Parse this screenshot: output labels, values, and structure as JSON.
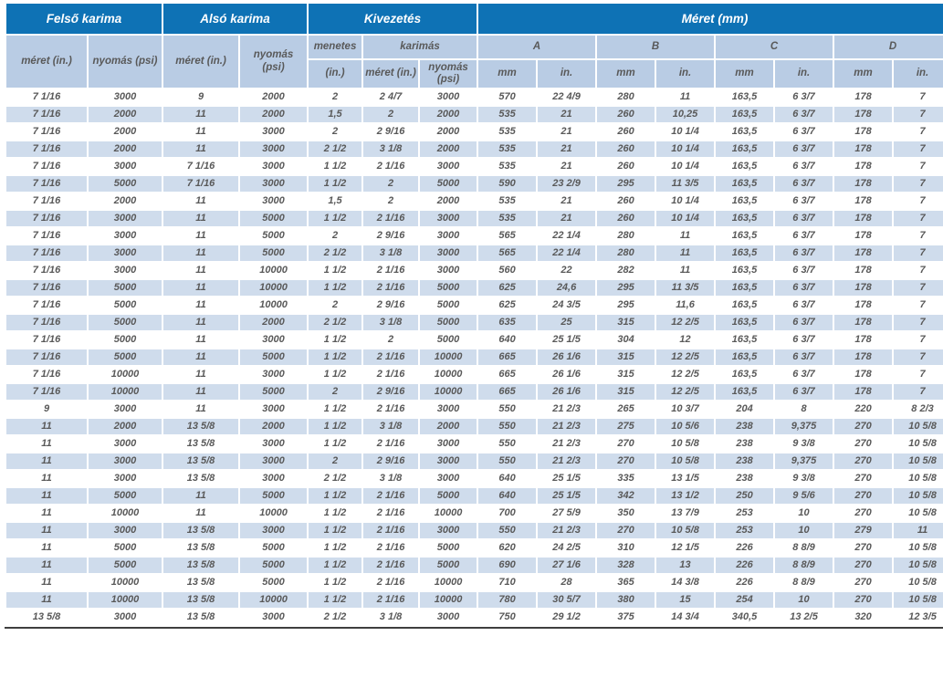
{
  "table": {
    "colors": {
      "header_blue": "#0e72b5",
      "subheader_blue": "#b9cce4",
      "row_stripe": "#cfdcec",
      "text": "#595959",
      "header_text": "#ffffff",
      "bottom_line": "#3f3f3f"
    },
    "groups": [
      {
        "label": "Felső karima"
      },
      {
        "label": "Alsó karima"
      },
      {
        "label": "Kivezetés"
      },
      {
        "label": "Méret (mm)"
      }
    ],
    "subheaders": {
      "felso_meret": "méret (in.)",
      "felso_nyomas": "nyomás (psi)",
      "also_meret": "méret (in.)",
      "also_nyomas": "nyomás (psi)",
      "menetes": "menetes",
      "menetes_unit": "(in.)",
      "karimas": "karimás",
      "karimas_meret": "méret (in.)",
      "karimas_nyomas": "nyomás (psi)",
      "dim_a": "A",
      "dim_b": "B",
      "dim_c": "C",
      "dim_d": "D",
      "mm": "mm",
      "in": "in."
    },
    "rows": [
      [
        "7 1/16",
        "3000",
        "9",
        "2000",
        "2",
        "2 4/7",
        "3000",
        "570",
        "22 4/9",
        "280",
        "11",
        "163,5",
        "6 3/7",
        "178",
        "7"
      ],
      [
        "7 1/16",
        "2000",
        "11",
        "2000",
        "1,5",
        "2",
        "2000",
        "535",
        "21",
        "260",
        "10,25",
        "163,5",
        "6 3/7",
        "178",
        "7"
      ],
      [
        "7 1/16",
        "2000",
        "11",
        "3000",
        "2",
        "2 9/16",
        "2000",
        "535",
        "21",
        "260",
        "10 1/4",
        "163,5",
        "6 3/7",
        "178",
        "7"
      ],
      [
        "7 1/16",
        "2000",
        "11",
        "3000",
        "2 1/2",
        "3 1/8",
        "2000",
        "535",
        "21",
        "260",
        "10 1/4",
        "163,5",
        "6 3/7",
        "178",
        "7"
      ],
      [
        "7 1/16",
        "3000",
        "7 1/16",
        "3000",
        "1 1/2",
        "2 1/16",
        "3000",
        "535",
        "21",
        "260",
        "10 1/4",
        "163,5",
        "6 3/7",
        "178",
        "7"
      ],
      [
        "7 1/16",
        "5000",
        "7 1/16",
        "3000",
        "1 1/2",
        "2",
        "5000",
        "590",
        "23 2/9",
        "295",
        "11 3/5",
        "163,5",
        "6 3/7",
        "178",
        "7"
      ],
      [
        "7 1/16",
        "2000",
        "11",
        "3000",
        "1,5",
        "2",
        "2000",
        "535",
        "21",
        "260",
        "10 1/4",
        "163,5",
        "6 3/7",
        "178",
        "7"
      ],
      [
        "7 1/16",
        "3000",
        "11",
        "5000",
        "1 1/2",
        "2 1/16",
        "3000",
        "535",
        "21",
        "260",
        "10 1/4",
        "163,5",
        "6 3/7",
        "178",
        "7"
      ],
      [
        "7 1/16",
        "3000",
        "11",
        "5000",
        "2",
        "2 9/16",
        "3000",
        "565",
        "22 1/4",
        "280",
        "11",
        "163,5",
        "6 3/7",
        "178",
        "7"
      ],
      [
        "7 1/16",
        "3000",
        "11",
        "5000",
        "2 1/2",
        "3 1/8",
        "3000",
        "565",
        "22 1/4",
        "280",
        "11",
        "163,5",
        "6 3/7",
        "178",
        "7"
      ],
      [
        "7 1/16",
        "3000",
        "11",
        "10000",
        "1 1/2",
        "2 1/16",
        "3000",
        "560",
        "22",
        "282",
        "11",
        "163,5",
        "6 3/7",
        "178",
        "7"
      ],
      [
        "7 1/16",
        "5000",
        "11",
        "10000",
        "1 1/2",
        "2 1/16",
        "5000",
        "625",
        "24,6",
        "295",
        "11 3/5",
        "163,5",
        "6 3/7",
        "178",
        "7"
      ],
      [
        "7 1/16",
        "5000",
        "11",
        "10000",
        "2",
        "2 9/16",
        "5000",
        "625",
        "24 3/5",
        "295",
        "11,6",
        "163,5",
        "6 3/7",
        "178",
        "7"
      ],
      [
        "7 1/16",
        "5000",
        "11",
        "2000",
        "2 1/2",
        "3 1/8",
        "5000",
        "635",
        "25",
        "315",
        "12 2/5",
        "163,5",
        "6 3/7",
        "178",
        "7"
      ],
      [
        "7 1/16",
        "5000",
        "11",
        "3000",
        "1 1/2",
        "2",
        "5000",
        "640",
        "25 1/5",
        "304",
        "12",
        "163,5",
        "6 3/7",
        "178",
        "7"
      ],
      [
        "7 1/16",
        "5000",
        "11",
        "5000",
        "1 1/2",
        "2 1/16",
        "10000",
        "665",
        "26 1/6",
        "315",
        "12 2/5",
        "163,5",
        "6 3/7",
        "178",
        "7"
      ],
      [
        "7 1/16",
        "10000",
        "11",
        "3000",
        "1 1/2",
        "2 1/16",
        "10000",
        "665",
        "26 1/6",
        "315",
        "12 2/5",
        "163,5",
        "6 3/7",
        "178",
        "7"
      ],
      [
        "7 1/16",
        "10000",
        "11",
        "5000",
        "2",
        "2 9/16",
        "10000",
        "665",
        "26 1/6",
        "315",
        "12 2/5",
        "163,5",
        "6 3/7",
        "178",
        "7"
      ],
      [
        "9",
        "3000",
        "11",
        "3000",
        "1 1/2",
        "2 1/16",
        "3000",
        "550",
        "21 2/3",
        "265",
        "10 3/7",
        "204",
        "8",
        "220",
        "8 2/3"
      ],
      [
        "11",
        "2000",
        "13 5/8",
        "2000",
        "1 1/2",
        "3 1/8",
        "2000",
        "550",
        "21 2/3",
        "275",
        "10 5/6",
        "238",
        "9,375",
        "270",
        "10 5/8"
      ],
      [
        "11",
        "3000",
        "13 5/8",
        "3000",
        "1 1/2",
        "2 1/16",
        "3000",
        "550",
        "21 2/3",
        "270",
        "10 5/8",
        "238",
        "9 3/8",
        "270",
        "10 5/8"
      ],
      [
        "11",
        "3000",
        "13 5/8",
        "3000",
        "2",
        "2 9/16",
        "3000",
        "550",
        "21 2/3",
        "270",
        "10 5/8",
        "238",
        "9,375",
        "270",
        "10 5/8"
      ],
      [
        "11",
        "3000",
        "13 5/8",
        "3000",
        "2 1/2",
        "3 1/8",
        "3000",
        "640",
        "25 1/5",
        "335",
        "13 1/5",
        "238",
        "9 3/8",
        "270",
        "10 5/8"
      ],
      [
        "11",
        "5000",
        "11",
        "5000",
        "1 1/2",
        "2 1/16",
        "5000",
        "640",
        "25 1/5",
        "342",
        "13 1/2",
        "250",
        "9 5/6",
        "270",
        "10 5/8"
      ],
      [
        "11",
        "10000",
        "11",
        "10000",
        "1 1/2",
        "2 1/16",
        "10000",
        "700",
        "27 5/9",
        "350",
        "13 7/9",
        "253",
        "10",
        "270",
        "10 5/8"
      ],
      [
        "11",
        "3000",
        "13 5/8",
        "3000",
        "1 1/2",
        "2 1/16",
        "3000",
        "550",
        "21 2/3",
        "270",
        "10 5/8",
        "253",
        "10",
        "279",
        "11"
      ],
      [
        "11",
        "5000",
        "13 5/8",
        "5000",
        "1 1/2",
        "2 1/16",
        "5000",
        "620",
        "24 2/5",
        "310",
        "12 1/5",
        "226",
        "8 8/9",
        "270",
        "10 5/8"
      ],
      [
        "11",
        "5000",
        "13 5/8",
        "5000",
        "1 1/2",
        "2 1/16",
        "5000",
        "690",
        "27 1/6",
        "328",
        "13",
        "226",
        "8 8/9",
        "270",
        "10 5/8"
      ],
      [
        "11",
        "10000",
        "13 5/8",
        "5000",
        "1 1/2",
        "2 1/16",
        "10000",
        "710",
        "28",
        "365",
        "14 3/8",
        "226",
        "8 8/9",
        "270",
        "10 5/8"
      ],
      [
        "11",
        "10000",
        "13 5/8",
        "10000",
        "1 1/2",
        "2 1/16",
        "10000",
        "780",
        "30 5/7",
        "380",
        "15",
        "254",
        "10",
        "270",
        "10 5/8"
      ],
      [
        "13 5/8",
        "3000",
        "13 5/8",
        "3000",
        "2 1/2",
        "3 1/8",
        "3000",
        "750",
        "29 1/2",
        "375",
        "14 3/4",
        "340,5",
        "13 2/5",
        "320",
        "12 3/5"
      ]
    ],
    "white_cells": [
      [
        5,
        2
      ]
    ]
  }
}
